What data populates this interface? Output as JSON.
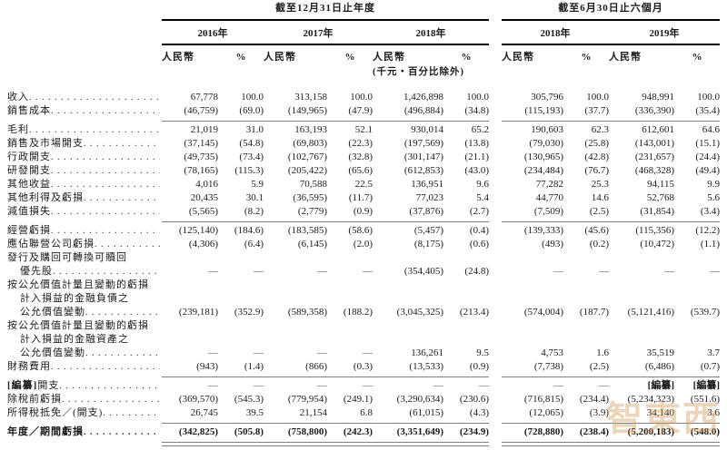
{
  "table": {
    "group_headers": [
      "截至12月31日止年度",
      "截至6月30日止六個月"
    ],
    "year_headers": [
      "2016年",
      "2017年",
      "2018年",
      "2018年",
      "2019年"
    ],
    "sub_headers": {
      "currency": "人民幣",
      "percent": "%"
    },
    "unit_note": "(千元・百分比除外)",
    "redacted_token": "[編纂]",
    "rows": [
      {
        "label_lines": [
          "收入"
        ],
        "values": [
          "67,778",
          "100.0",
          "313,158",
          "100.0",
          "1,426,898",
          "100.0",
          "305,796",
          "100.0",
          "948,991",
          "100.0"
        ]
      },
      {
        "label_lines": [
          "銷售成本"
        ],
        "values": [
          "(46,759)",
          "(69.0)",
          "(149,965)",
          "(47.9)",
          "(496,884)",
          "(34.8)",
          "(115,193)",
          "(37.7)",
          "(336,390)",
          "(35.4)"
        ],
        "rule_below": true
      },
      {
        "label_lines": [
          "毛利"
        ],
        "values": [
          "21,019",
          "31.0",
          "163,193",
          "52.1",
          "930,014",
          "65.2",
          "190,603",
          "62.3",
          "612,601",
          "64.6"
        ]
      },
      {
        "label_lines": [
          "銷售及市場開支"
        ],
        "values": [
          "(37,145)",
          "(54.8)",
          "(69,803)",
          "(22.3)",
          "(197,569)",
          "(13.8)",
          "(79,030)",
          "(25.8)",
          "(143,001)",
          "(15.1)"
        ]
      },
      {
        "label_lines": [
          "行政開支"
        ],
        "values": [
          "(49,735)",
          "(73.4)",
          "(102,767)",
          "(32.8)",
          "(301,147)",
          "(21.1)",
          "(130,965)",
          "(42.8)",
          "(231,657)",
          "(24.4)"
        ]
      },
      {
        "label_lines": [
          "研發開支"
        ],
        "values": [
          "(78,165)",
          "(115.3)",
          "(205,422)",
          "(65.6)",
          "(612,853)",
          "(43.0)",
          "(234,484)",
          "(76.7)",
          "(468,328)",
          "(49.4)"
        ]
      },
      {
        "label_lines": [
          "其他收益"
        ],
        "values": [
          "4,016",
          "5.9",
          "70,588",
          "22.5",
          "136,951",
          "9.6",
          "77,282",
          "25.3",
          "94,115",
          "9.9"
        ]
      },
      {
        "label_lines": [
          "其他利得及虧損"
        ],
        "values": [
          "20,435",
          "30.1",
          "(36,595)",
          "(11.7)",
          "77,023",
          "5.4",
          "44,770",
          "14.6",
          "52,768",
          "5.6"
        ]
      },
      {
        "label_lines": [
          "減值損失"
        ],
        "values": [
          "(5,565)",
          "(8.2)",
          "(2,779)",
          "(0.9)",
          "(37,876)",
          "(2.7)",
          "(7,509)",
          "(2.5)",
          "(31,854)",
          "(3.4)"
        ],
        "rule_below": true
      },
      {
        "label_lines": [
          "經營虧損"
        ],
        "values": [
          "(125,140)",
          "(184.6)",
          "(183,585)",
          "(58.6)",
          "(5,457)",
          "(0.4)",
          "(139,333)",
          "(45.6)",
          "(115,356)",
          "(12.2)"
        ]
      },
      {
        "label_lines": [
          "應佔聯營公司虧損"
        ],
        "values": [
          "(4,306)",
          "(6.4)",
          "(6,145)",
          "(2.0)",
          "(8,175)",
          "(0.6)",
          "(493)",
          "(0.2)",
          "(10,472)",
          "(1.1)"
        ]
      },
      {
        "label_lines": [
          "發行及購回可轉換可贖回",
          "優先股"
        ],
        "values": [
          "—",
          "—",
          "—",
          "—",
          "(354,405)",
          "(24.8)",
          "—",
          "—",
          "—",
          "—"
        ]
      },
      {
        "label_lines": [
          "按公允價值計量且變動的虧損",
          "計入損益的金融負債之",
          "公允價值變動"
        ],
        "values": [
          "(239,181)",
          "(352.9)",
          "(589,358)",
          "(188.2)",
          "(3,045,325)",
          "(213.4)",
          "(574,004)",
          "(187.7)",
          "(5,121,416)",
          "(539.7)"
        ]
      },
      {
        "label_lines": [
          "按公允價值計量且變動的虧損",
          "計入損益的金融資產之",
          "公允價值變動"
        ],
        "values": [
          "—",
          "—",
          "—",
          "—",
          "136,261",
          "9.5",
          "4,753",
          "1.6",
          "35,519",
          "3.7"
        ]
      },
      {
        "label_lines": [
          "財務費用"
        ],
        "values": [
          "(943)",
          "(1.4)",
          "(866)",
          "(0.3)",
          "(13,533)",
          "(0.9)",
          "(7,738)",
          "(2.5)",
          "(6,486)",
          "(0.7)"
        ],
        "rule_below": true
      },
      {
        "label_lines": [
          "[編纂]開支"
        ],
        "values": [
          "—",
          "—",
          "—",
          "—",
          "—",
          "—",
          "—",
          "—",
          "[編纂]",
          "[編纂]"
        ]
      },
      {
        "label_lines": [
          "除稅前虧損"
        ],
        "values": [
          "(369,570)",
          "(545.3)",
          "(779,954)",
          "(249.1)",
          "(3,290,634)",
          "(230.6)",
          "(716,815)",
          "(234.4)",
          "(5,234,323)",
          "(551.6)"
        ]
      },
      {
        "label_lines": [
          "所得稅抵免／(開支)"
        ],
        "values": [
          "26,745",
          "39.5",
          "21,154",
          "6.8",
          "(61,015)",
          "(4.3)",
          "(12,065)",
          "(3.9)",
          "34,140",
          "3.6"
        ],
        "rule_below": true
      },
      {
        "label_lines": [
          "年度／期間虧損"
        ],
        "bold": true,
        "values": [
          "(342,825)",
          "(505.8)",
          "(758,800)",
          "(242.3)",
          "(3,351,649)",
          "(234.9)",
          "(728,880)",
          "(238.4)",
          "(5,200,183)",
          "(548.0)"
        ],
        "double_rule_below": true
      }
    ]
  },
  "watermark": {
    "text": "智東西"
  }
}
